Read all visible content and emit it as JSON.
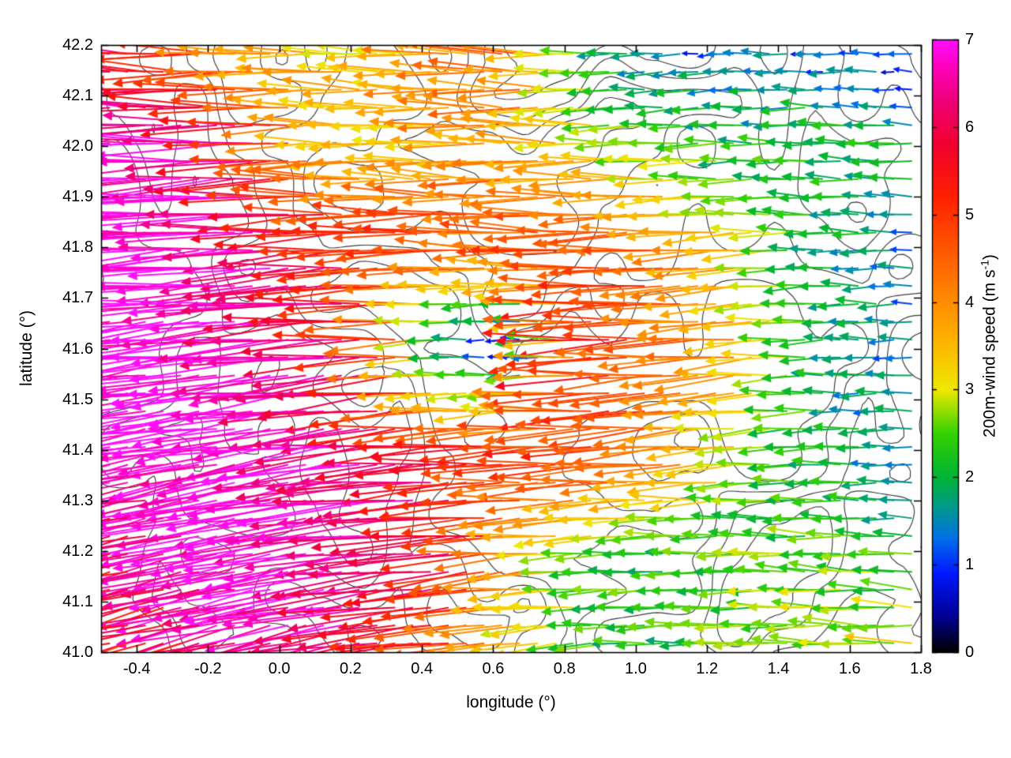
{
  "chart_data": {
    "type": "quiver",
    "title": "",
    "xlabel": "longitude (°)",
    "ylabel": "latitude (°)",
    "xlim": [
      -0.5,
      1.8
    ],
    "ylim": [
      41.0,
      42.2
    ],
    "xticks": [
      -0.4,
      -0.2,
      0.0,
      0.2,
      0.4,
      0.6,
      0.8,
      1.0,
      1.2,
      1.4,
      1.6,
      1.8
    ],
    "xtick_labels": [
      "-0.4",
      "-0.2",
      "0.0",
      "0.2",
      "0.4",
      "0.6",
      "0.8",
      "1.0",
      "1.2",
      "1.4",
      "1.6",
      "1.8"
    ],
    "yticks": [
      41.0,
      41.1,
      41.2,
      41.3,
      41.4,
      41.5,
      41.6,
      41.7,
      41.8,
      41.9,
      42.0,
      42.1,
      42.2
    ],
    "ytick_labels": [
      "41.0",
      "41.1",
      "41.2",
      "41.3",
      "41.4",
      "41.5",
      "41.6",
      "41.7",
      "41.8",
      "41.9",
      "42.0",
      "42.1",
      "42.2"
    ],
    "grid": "off",
    "legend": "none",
    "colorbar": {
      "label": "200m-wind speed (m s⁻¹)",
      "label_parts": [
        "200m-wind speed (m s",
        "-1",
        ")"
      ],
      "range": [
        0,
        7
      ],
      "ticks": [
        0,
        1,
        2,
        3,
        4,
        5,
        6,
        7
      ],
      "tick_labels": [
        "0",
        "1",
        "2",
        "3",
        "4",
        "5",
        "6",
        "7"
      ],
      "position": "right",
      "palette_stops": [
        [
          0.0,
          "#000000"
        ],
        [
          0.4,
          "#000090"
        ],
        [
          0.9,
          "#0018ff"
        ],
        [
          1.3,
          "#0070e8"
        ],
        [
          1.65,
          "#00998c"
        ],
        [
          2.0,
          "#00b435"
        ],
        [
          2.5,
          "#35d200"
        ],
        [
          3.0,
          "#efe800"
        ],
        [
          3.6,
          "#ffb000"
        ],
        [
          4.1,
          "#ff8400"
        ],
        [
          4.7,
          "#ff4e00"
        ],
        [
          5.2,
          "#ff2000"
        ],
        [
          5.8,
          "#f20030"
        ],
        [
          6.3,
          "#ee0078"
        ],
        [
          6.7,
          "#ff00c0"
        ],
        [
          7.0,
          "#ff10ff"
        ]
      ]
    },
    "wind_field": {
      "note": "coarse field read off the figure; speed in m/s (arrow length and colour), direction degrees CCW from east (180 = blowing toward west); rows ordered south to north matching grid_lat",
      "grid_lon": [
        -0.5,
        -0.3,
        -0.1,
        0.1,
        0.3,
        0.5,
        0.7,
        0.9,
        1.1,
        1.3,
        1.5,
        1.8
      ],
      "grid_lat": [
        41.0,
        41.2,
        41.4,
        41.6,
        41.8,
        42.0,
        42.2
      ],
      "speed": [
        [
          5.0,
          5.5,
          6.5,
          6.5,
          6.0,
          5.0,
          3.0,
          2.2,
          2.2,
          2.5,
          2.8,
          3.0
        ],
        [
          5.5,
          6.5,
          7.0,
          6.8,
          6.5,
          6.0,
          4.0,
          2.5,
          2.2,
          2.3,
          2.5,
          2.2
        ],
        [
          7.0,
          7.0,
          7.0,
          6.8,
          6.5,
          5.5,
          5.0,
          5.0,
          4.5,
          3.0,
          2.0,
          1.5
        ],
        [
          7.0,
          7.0,
          7.0,
          6.5,
          5.5,
          1.0,
          0.8,
          5.5,
          4.5,
          4.0,
          2.2,
          1.2
        ],
        [
          7.0,
          7.0,
          6.8,
          6.0,
          5.0,
          5.0,
          4.5,
          5.0,
          4.5,
          3.5,
          2.0,
          1.5
        ],
        [
          7.0,
          6.8,
          6.5,
          4.0,
          3.5,
          3.5,
          4.0,
          3.0,
          2.5,
          2.0,
          2.2,
          2.0
        ],
        [
          6.5,
          5.0,
          4.0,
          3.5,
          3.0,
          4.0,
          4.5,
          2.0,
          1.0,
          1.5,
          1.0,
          0.8
        ]
      ],
      "direction_deg": [
        [
          195,
          194,
          193,
          192,
          190,
          188,
          186,
          184,
          182,
          180,
          178,
          177
        ],
        [
          193,
          192,
          191,
          190,
          188,
          186,
          184,
          182,
          180,
          179,
          177,
          176
        ],
        [
          190,
          190,
          189,
          188,
          186,
          184,
          182,
          184,
          185,
          184,
          182,
          180
        ],
        [
          187,
          187,
          186,
          185,
          184,
          181,
          179,
          182,
          184,
          185,
          182,
          180
        ],
        [
          184,
          184,
          184,
          183,
          182,
          180,
          179,
          180,
          182,
          183,
          180,
          179
        ],
        [
          180,
          181,
          182,
          180,
          178,
          177,
          178,
          180,
          182,
          180,
          178,
          177
        ],
        [
          176,
          178,
          180,
          179,
          177,
          178,
          180,
          182,
          184,
          181,
          179,
          176
        ]
      ]
    },
    "arrow_grid": {
      "cols": 46,
      "rows": 34
    },
    "contours": {
      "color": "#3a3a3a",
      "style": "terrain outlines"
    },
    "frame_color": "#000000",
    "background": "#ffffff"
  }
}
